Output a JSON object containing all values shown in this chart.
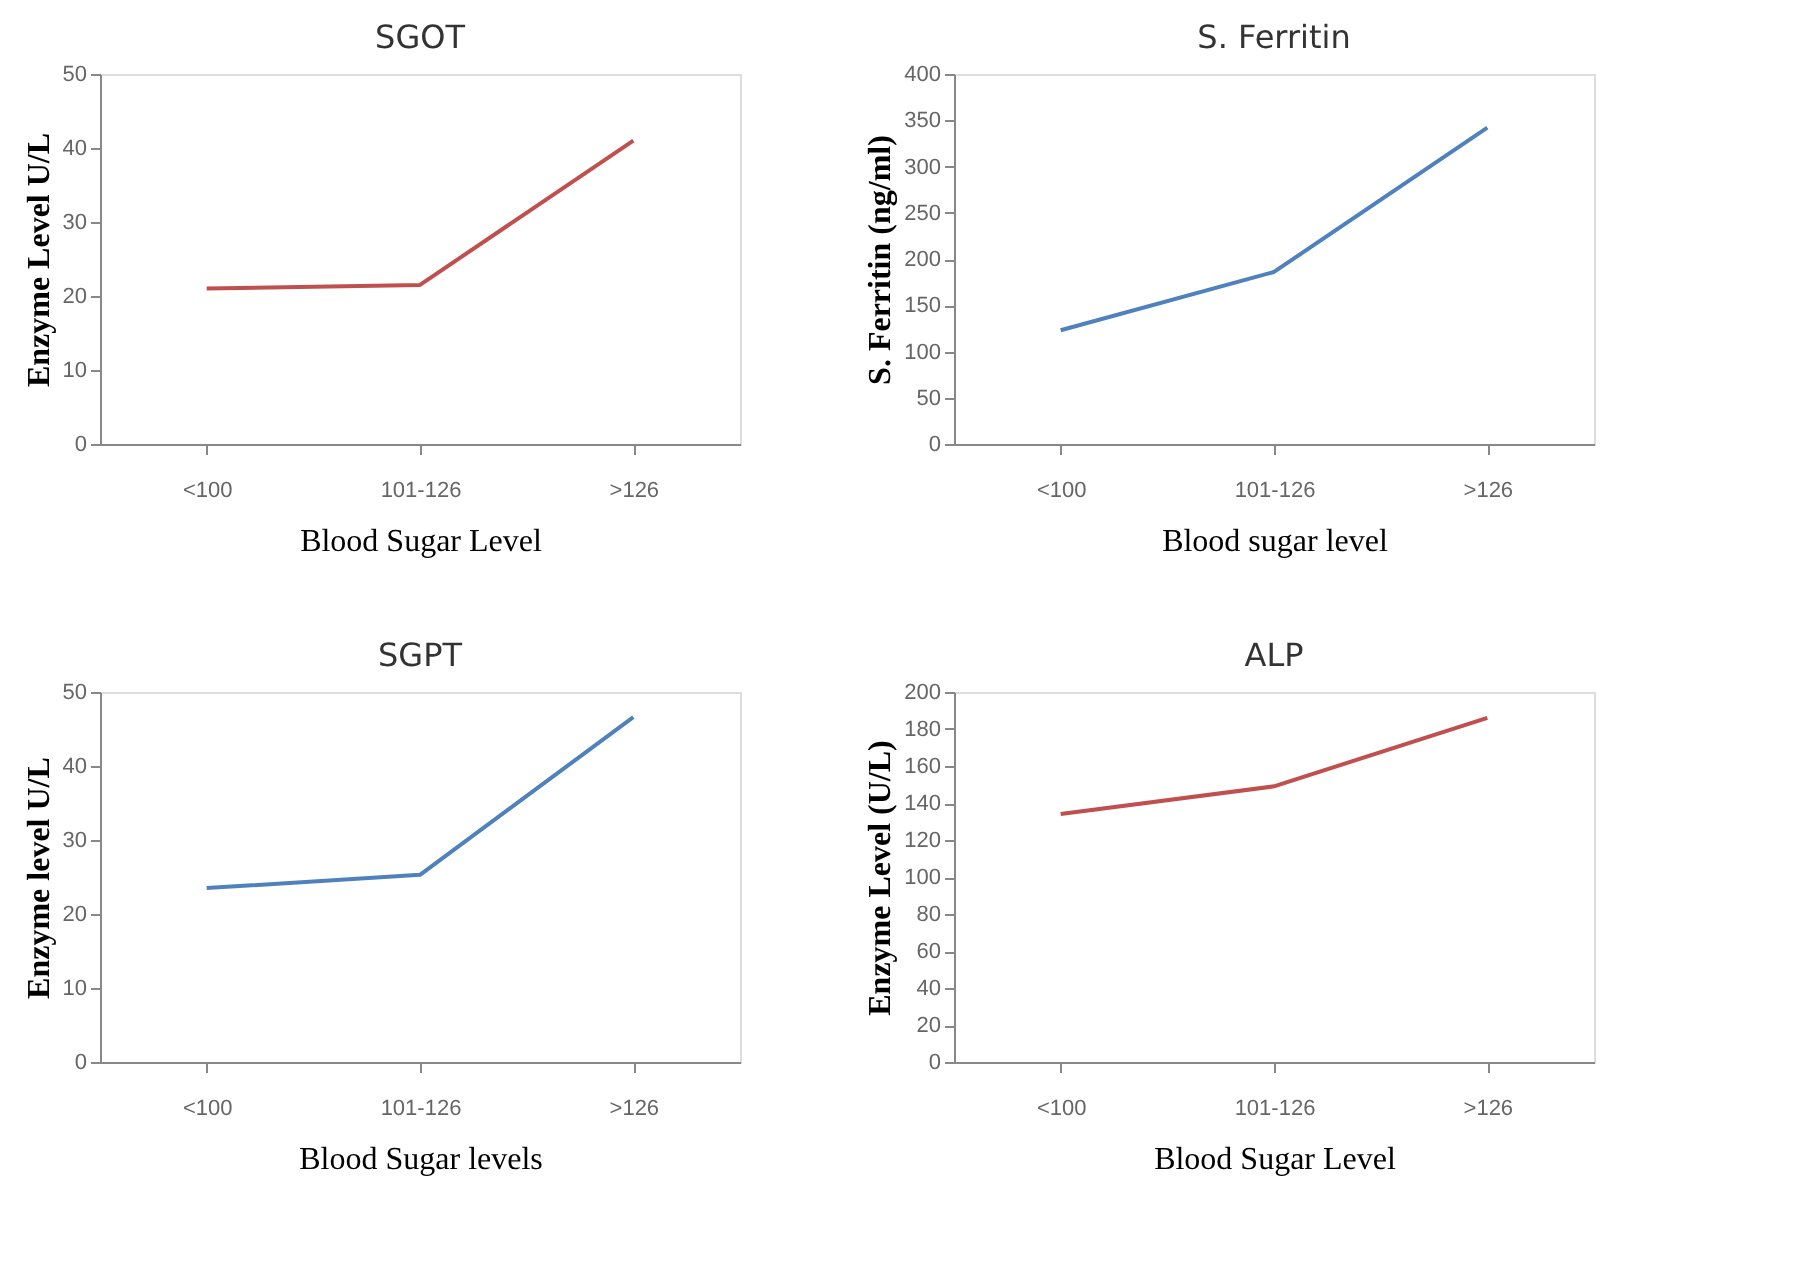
{
  "chart_data": [
    {
      "type": "line",
      "title": "SGOT",
      "xlabel": "Blood Sugar Level",
      "ylabel": "Enzyme Level U/L",
      "categories": [
        "<100",
        "101-126",
        ">126"
      ],
      "series": [
        {
          "color": "#c0504d",
          "values": [
            21,
            21.5,
            41
          ]
        }
      ],
      "ylim": [
        0,
        50
      ],
      "yticks": [
        0,
        10,
        20,
        30,
        40,
        50
      ],
      "grid": false
    },
    {
      "type": "line",
      "title": "S. Ferritin",
      "xlabel": "Blood sugar level",
      "ylabel": "S. Ferritin (ng/ml)",
      "categories": [
        "<100",
        "101-126",
        ">126"
      ],
      "series": [
        {
          "color": "#4f81bd",
          "values": [
            123,
            186,
            342
          ]
        }
      ],
      "ylim": [
        0,
        400
      ],
      "yticks": [
        0,
        50,
        100,
        150,
        200,
        250,
        300,
        350,
        400
      ],
      "grid": false
    },
    {
      "type": "line",
      "title": "SGPT",
      "xlabel": "Blood Sugar levels",
      "ylabel": "Enzyme level U/L",
      "categories": [
        "<100",
        "101-126",
        ">126"
      ],
      "series": [
        {
          "color": "#4f81bd",
          "values": [
            23.5,
            25.3,
            46.6
          ]
        }
      ],
      "ylim": [
        0,
        50
      ],
      "yticks": [
        0,
        10,
        20,
        30,
        40,
        50
      ],
      "grid": false
    },
    {
      "type": "line",
      "title": "ALP",
      "xlabel": "Blood Sugar Level",
      "ylabel": "Enzyme Level (U/L)",
      "categories": [
        "<100",
        "101-126",
        ">126"
      ],
      "series": [
        {
          "color": "#c0504d",
          "values": [
            134,
            149,
            186
          ]
        }
      ],
      "ylim": [
        0,
        200
      ],
      "yticks": [
        0,
        20,
        40,
        60,
        80,
        100,
        120,
        140,
        160,
        180,
        200
      ],
      "grid": false
    }
  ]
}
